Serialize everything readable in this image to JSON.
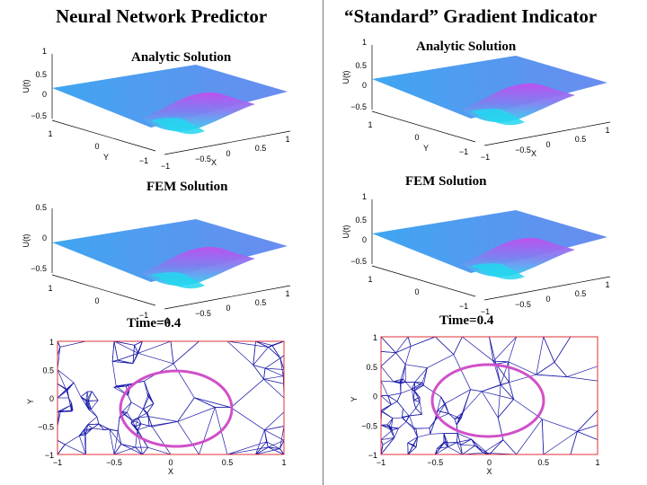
{
  "left_title": "Neural Network Predictor",
  "right_title": "“Standard” Gradient Indicator",
  "panels": [
    {
      "title": "Analytic Solution",
      "zlabel": "U(t)",
      "zticks": [
        "1",
        "0.5",
        "0",
        "−0.5"
      ],
      "yticks": [
        "1",
        "0",
        "−1"
      ],
      "ylabel": "Y",
      "xticks": [
        "−1",
        "−0.5",
        "0",
        "0.5",
        "1"
      ],
      "xlabel": "X"
    },
    {
      "title": "Analytic Solution",
      "zlabel": "U(t)",
      "zticks": [
        "1",
        "0.5",
        "0",
        "−0.5"
      ],
      "yticks": [
        "1",
        "0",
        "−1"
      ],
      "ylabel": "Y",
      "xticks": [
        "−1",
        "−0.5",
        "0",
        "0.5",
        "1"
      ],
      "xlabel": "X"
    },
    {
      "title": "FEM Solution",
      "zlabel": "U(t)",
      "zticks": [
        "0.5",
        "0",
        "−0.5"
      ],
      "yticks": [
        "1",
        "0",
        "−1"
      ],
      "ylabel": "",
      "xticks": [
        "−1",
        "−0.5",
        "0",
        "0.5",
        "1"
      ],
      "xlabel": ""
    },
    {
      "title": "FEM Solution",
      "zlabel": "U(t)",
      "zticks": [
        "1",
        "0.5",
        "0",
        "−0.5"
      ],
      "yticks": [
        "1",
        "0",
        "−1"
      ],
      "ylabel": "",
      "xticks": [
        "−1",
        "−0.5",
        "0",
        "0.5",
        "1"
      ],
      "xlabel": ""
    }
  ],
  "mesh_panels": [
    {
      "title": "Time=0.4",
      "yticks": [
        "1",
        "0.5",
        "0",
        "−0.5",
        "−1"
      ],
      "xticks": [
        "−1",
        "−0.5",
        "0",
        "0.5",
        "1"
      ],
      "xlabel": "X",
      "ylabel": "Y"
    },
    {
      "title": "Time=0.4",
      "yticks": [
        "1",
        "0.5",
        "0",
        "−0.5",
        "−1"
      ],
      "xticks": [
        "−1",
        "−0.5",
        "0",
        "0.5",
        "1"
      ],
      "xlabel": "X",
      "ylabel": "Y"
    }
  ],
  "colors": {
    "surface_low": "#2fd0f0",
    "surface_high": "#d24ff0",
    "mesh": "#1a1aa8",
    "frame": "#e0303a",
    "circle": "#d050c8"
  }
}
